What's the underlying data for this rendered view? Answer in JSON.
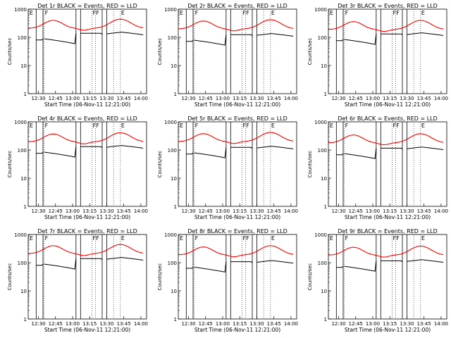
{
  "chart_data": {
    "type": "line",
    "layout": "3x3 grid",
    "scale": {
      "y": "log",
      "ylim": [
        1,
        1000
      ]
    },
    "x_ticks": [
      "12:30",
      "12:45",
      "13:00",
      "13:15",
      "13:30",
      "13:45",
      "14:00"
    ],
    "x_tick_minutes_after_12": [
      30,
      45,
      60,
      75,
      90,
      105,
      120
    ],
    "y_ticks": [
      "1",
      "10",
      "100",
      "1000"
    ],
    "xlabel": "Start Time (06-Nov-11 12:21:00)",
    "ylabel": "Counts/sec",
    "colors": {
      "events": "#000000",
      "lld": "#ff0000"
    },
    "marker_labels": [
      "E",
      "F",
      "F",
      "F",
      "E"
    ],
    "panels": [
      {
        "title": "Det 1r BLACK = Events, RED = LLD",
        "events_base": 90,
        "lld_base": 210
      },
      {
        "title": "Det 2r BLACK = Events, RED = LLD",
        "events_base": 80,
        "lld_base": 200
      },
      {
        "title": "Det 3r BLACK = Events, RED = LLD",
        "events_base": 85,
        "lld_base": 190
      },
      {
        "title": "Det 4r BLACK = Events, RED = LLD",
        "events_base": 85,
        "lld_base": 195
      },
      {
        "title": "Det 5r BLACK = Events, RED = LLD",
        "events_base": 80,
        "lld_base": 200
      },
      {
        "title": "Det 6r BLACK = Events, RED = LLD",
        "events_base": 75,
        "lld_base": 180
      },
      {
        "title": "Det 7r BLACK = Events, RED = LLD",
        "events_base": 90,
        "lld_base": 210
      },
      {
        "title": "Det 8r BLACK = Events, RED = LLD",
        "events_base": 70,
        "lld_base": 190
      },
      {
        "title": "Det 9r BLACK = Events, RED = LLD",
        "events_base": 75,
        "lld_base": 185
      }
    ]
  }
}
